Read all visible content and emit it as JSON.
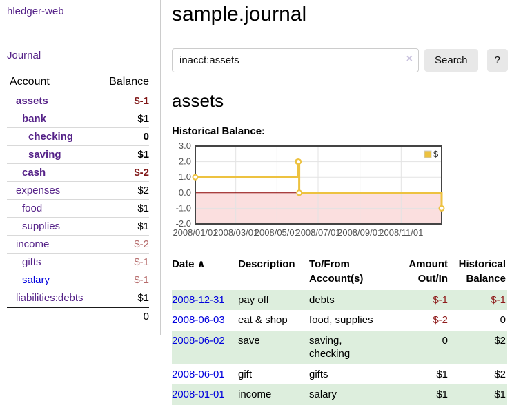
{
  "app": {
    "brand": "hledger-web",
    "nav_journal": "Journal"
  },
  "sidebar": {
    "headers": {
      "account": "Account",
      "balance": "Balance"
    },
    "accounts": [
      {
        "name": "assets",
        "depth": 0,
        "bold": true,
        "link_color": "purple",
        "balance": "$-1",
        "balance_style": "neg-strong"
      },
      {
        "name": "bank",
        "depth": 1,
        "bold": true,
        "link_color": "purple",
        "balance": "$1",
        "balance_style": "pos-strong"
      },
      {
        "name": "checking",
        "depth": 2,
        "bold": true,
        "link_color": "purple",
        "balance": "0",
        "balance_style": "pos-strong"
      },
      {
        "name": "saving",
        "depth": 2,
        "bold": true,
        "link_color": "purple",
        "balance": "$1",
        "balance_style": "pos-strong"
      },
      {
        "name": "cash",
        "depth": 1,
        "bold": true,
        "link_color": "purple",
        "balance": "$-2",
        "balance_style": "neg-strong"
      },
      {
        "name": "expenses",
        "depth": 0,
        "bold": false,
        "link_color": "purple",
        "balance": "$2",
        "balance_style": "pos"
      },
      {
        "name": "food",
        "depth": 1,
        "bold": false,
        "link_color": "purple",
        "balance": "$1",
        "balance_style": "pos"
      },
      {
        "name": "supplies",
        "depth": 1,
        "bold": false,
        "link_color": "purple",
        "balance": "$1",
        "balance_style": "pos"
      },
      {
        "name": "income",
        "depth": 0,
        "bold": false,
        "link_color": "purple",
        "balance": "$-2",
        "balance_style": "neg-dim"
      },
      {
        "name": "gifts",
        "depth": 1,
        "bold": false,
        "link_color": "purple",
        "balance": "$-1",
        "balance_style": "neg-dim"
      },
      {
        "name": "salary",
        "depth": 1,
        "bold": false,
        "link_color": "blue",
        "balance": "$-1",
        "balance_style": "neg-dim"
      },
      {
        "name": "liabilities:debts",
        "depth": 0,
        "bold": false,
        "link_color": "purple",
        "balance": "$1",
        "balance_style": "pos"
      }
    ],
    "total": "0"
  },
  "header": {
    "title": "sample.journal"
  },
  "search": {
    "value": "inacct:assets",
    "clear_icon": "×",
    "button_label": "Search",
    "help_label": "?"
  },
  "account_page": {
    "heading": "assets",
    "chart_title": "Historical Balance:"
  },
  "chart_data": {
    "type": "line",
    "step": true,
    "series": [
      {
        "name": "$",
        "color": "#edc240",
        "points": [
          [
            "2008-01-01",
            1
          ],
          [
            "2008-06-01",
            2
          ],
          [
            "2008-06-02",
            2
          ],
          [
            "2008-06-03",
            0
          ],
          [
            "2008-12-31",
            -1
          ]
        ]
      }
    ],
    "x_range": [
      "2008-01-01",
      "2008-12-31"
    ],
    "x_tick_labels": [
      "2008/01/01",
      "2008/03/01",
      "2008/05/01",
      "2008/07/01",
      "2008/09/01",
      "2008/11/01"
    ],
    "x_tick_dates": [
      "2008-01-01",
      "2008-03-01",
      "2008-05-01",
      "2008-07-01",
      "2008-09-01",
      "2008-11-01"
    ],
    "y_ticks": [
      -2,
      -1,
      0,
      1,
      2,
      3
    ],
    "ylim": [
      -2,
      3
    ],
    "legend_position": "top-right",
    "grid": true,
    "colors": {
      "negative_region": "#fbdfdf",
      "zero_line": "#8b0000",
      "grid_line": "#e3e3e3",
      "border": "#444444",
      "tick_text": "#545454"
    }
  },
  "register": {
    "headers": {
      "date": "Date",
      "sort_asc": "∧",
      "description": "Description",
      "accounts": "To/From Account(s)",
      "amount": "Amount Out/In",
      "balance": "Historical Balance"
    },
    "rows": [
      {
        "date": "2008-12-31",
        "description": "pay off",
        "accounts": "debts",
        "amount": "$-1",
        "amount_neg": true,
        "balance": "$-1",
        "balance_neg": true,
        "shaded": true
      },
      {
        "date": "2008-06-03",
        "description": "eat & shop",
        "accounts": "food, supplies",
        "amount": "$-2",
        "amount_neg": true,
        "balance": "0",
        "balance_neg": false,
        "shaded": false
      },
      {
        "date": "2008-06-02",
        "description": "save",
        "accounts": "saving, checking",
        "amount": "0",
        "amount_neg": false,
        "balance": "$2",
        "balance_neg": false,
        "shaded": true
      },
      {
        "date": "2008-06-01",
        "description": "gift",
        "accounts": "gifts",
        "amount": "$1",
        "amount_neg": false,
        "balance": "$2",
        "balance_neg": false,
        "shaded": false
      },
      {
        "date": "2008-01-01",
        "description": "income",
        "accounts": "salary",
        "amount": "$1",
        "amount_neg": false,
        "balance": "$1",
        "balance_neg": false,
        "shaded": true
      }
    ]
  }
}
